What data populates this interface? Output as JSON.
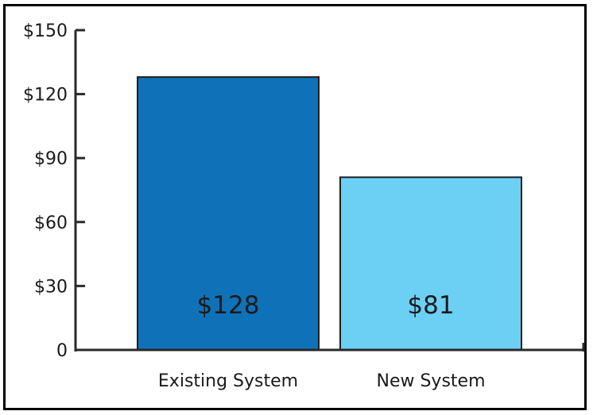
{
  "chart_data": {
    "type": "bar",
    "categories": [
      "Existing System",
      "New System"
    ],
    "values": [
      128,
      81
    ],
    "data_labels": [
      "$128",
      "$81"
    ],
    "bar_colors": [
      "#0f72b8",
      "#6cd0f5"
    ],
    "ylim": [
      0,
      150
    ],
    "y_ticks": [
      {
        "value": 0,
        "label": "0"
      },
      {
        "value": 30,
        "label": "$30"
      },
      {
        "value": 60,
        "label": "$60"
      },
      {
        "value": 90,
        "label": "$90"
      },
      {
        "value": 120,
        "label": "$120"
      },
      {
        "value": 150,
        "label": "$150"
      }
    ],
    "grid": false,
    "legend": "none"
  }
}
